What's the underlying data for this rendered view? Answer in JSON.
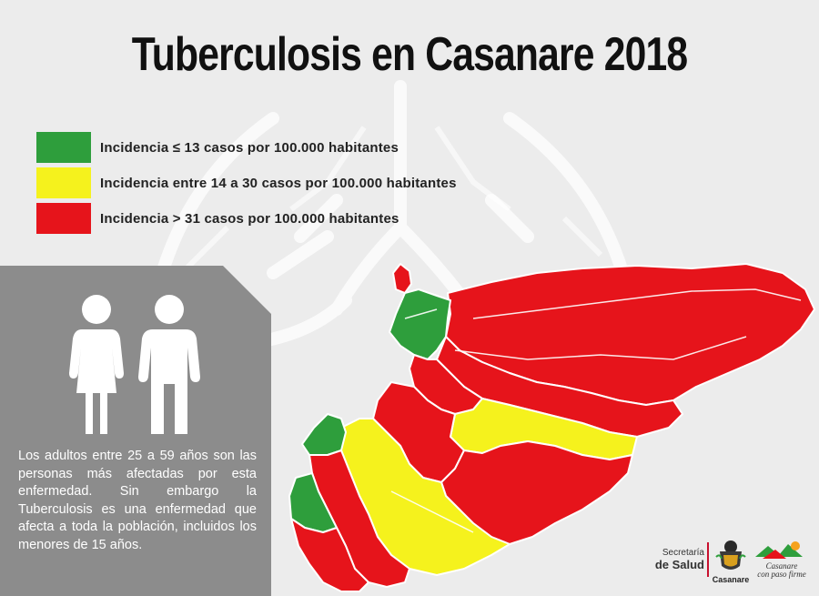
{
  "title": "Tuberculosis en Casanare 2018",
  "legend": {
    "items": [
      {
        "color": "#2e9e3c",
        "label": "Incidencia  ≤ 13 casos por 100.000 habitantes"
      },
      {
        "color": "#f5f21d",
        "label": "Incidencia entre 14 a 30 casos por 100.000 habitantes"
      },
      {
        "color": "#e6141b",
        "label": "Incidencia > 31 casos por 100.000 habitantes"
      }
    ]
  },
  "info_panel": {
    "text": "Los adultos entre 25 a 59 años son las personas más afectadas por esta enfermedad. Sin embargo la Tuberculosis es una enfermedad que afecta a toda la población, incluidos los menores de 15 años.",
    "icons": [
      "female-person-icon",
      "male-person-icon"
    ]
  },
  "map": {
    "colors": {
      "green": "#2e9e3c",
      "yellow": "#f5f21d",
      "red": "#e6141b",
      "border": "#ffffff"
    }
  },
  "footer": {
    "secretaria_line1": "Secretaría",
    "secretaria_line2": "de Salud",
    "casanare_word": "Casanare",
    "slogan_line1": "Casanare",
    "slogan_line2": "con paso firme"
  }
}
